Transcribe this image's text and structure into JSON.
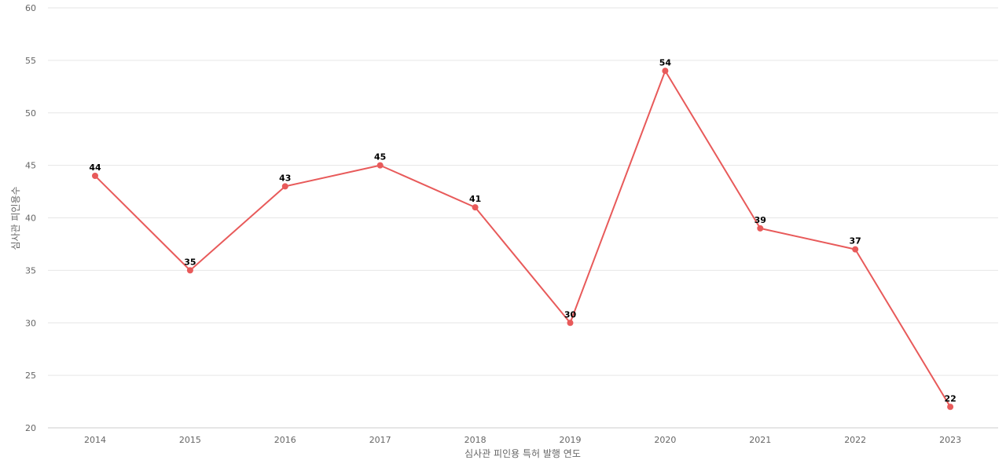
{
  "chart_data": {
    "type": "line",
    "x": [
      "2014",
      "2015",
      "2016",
      "2017",
      "2018",
      "2019",
      "2020",
      "2021",
      "2022",
      "2023"
    ],
    "series": [
      {
        "values": [
          44,
          35,
          43,
          45,
          41,
          30,
          54,
          39,
          37,
          22
        ]
      }
    ],
    "xlabel": "심사관 피인용 특허 발행 연도",
    "ylabel": "심사관 피인용수",
    "ylim": [
      20,
      60
    ],
    "yticks": [
      20,
      25,
      30,
      35,
      40,
      45,
      50,
      55,
      60
    ],
    "grid": true,
    "data_labels": true,
    "colors": {
      "series": "#e85a5a"
    }
  }
}
